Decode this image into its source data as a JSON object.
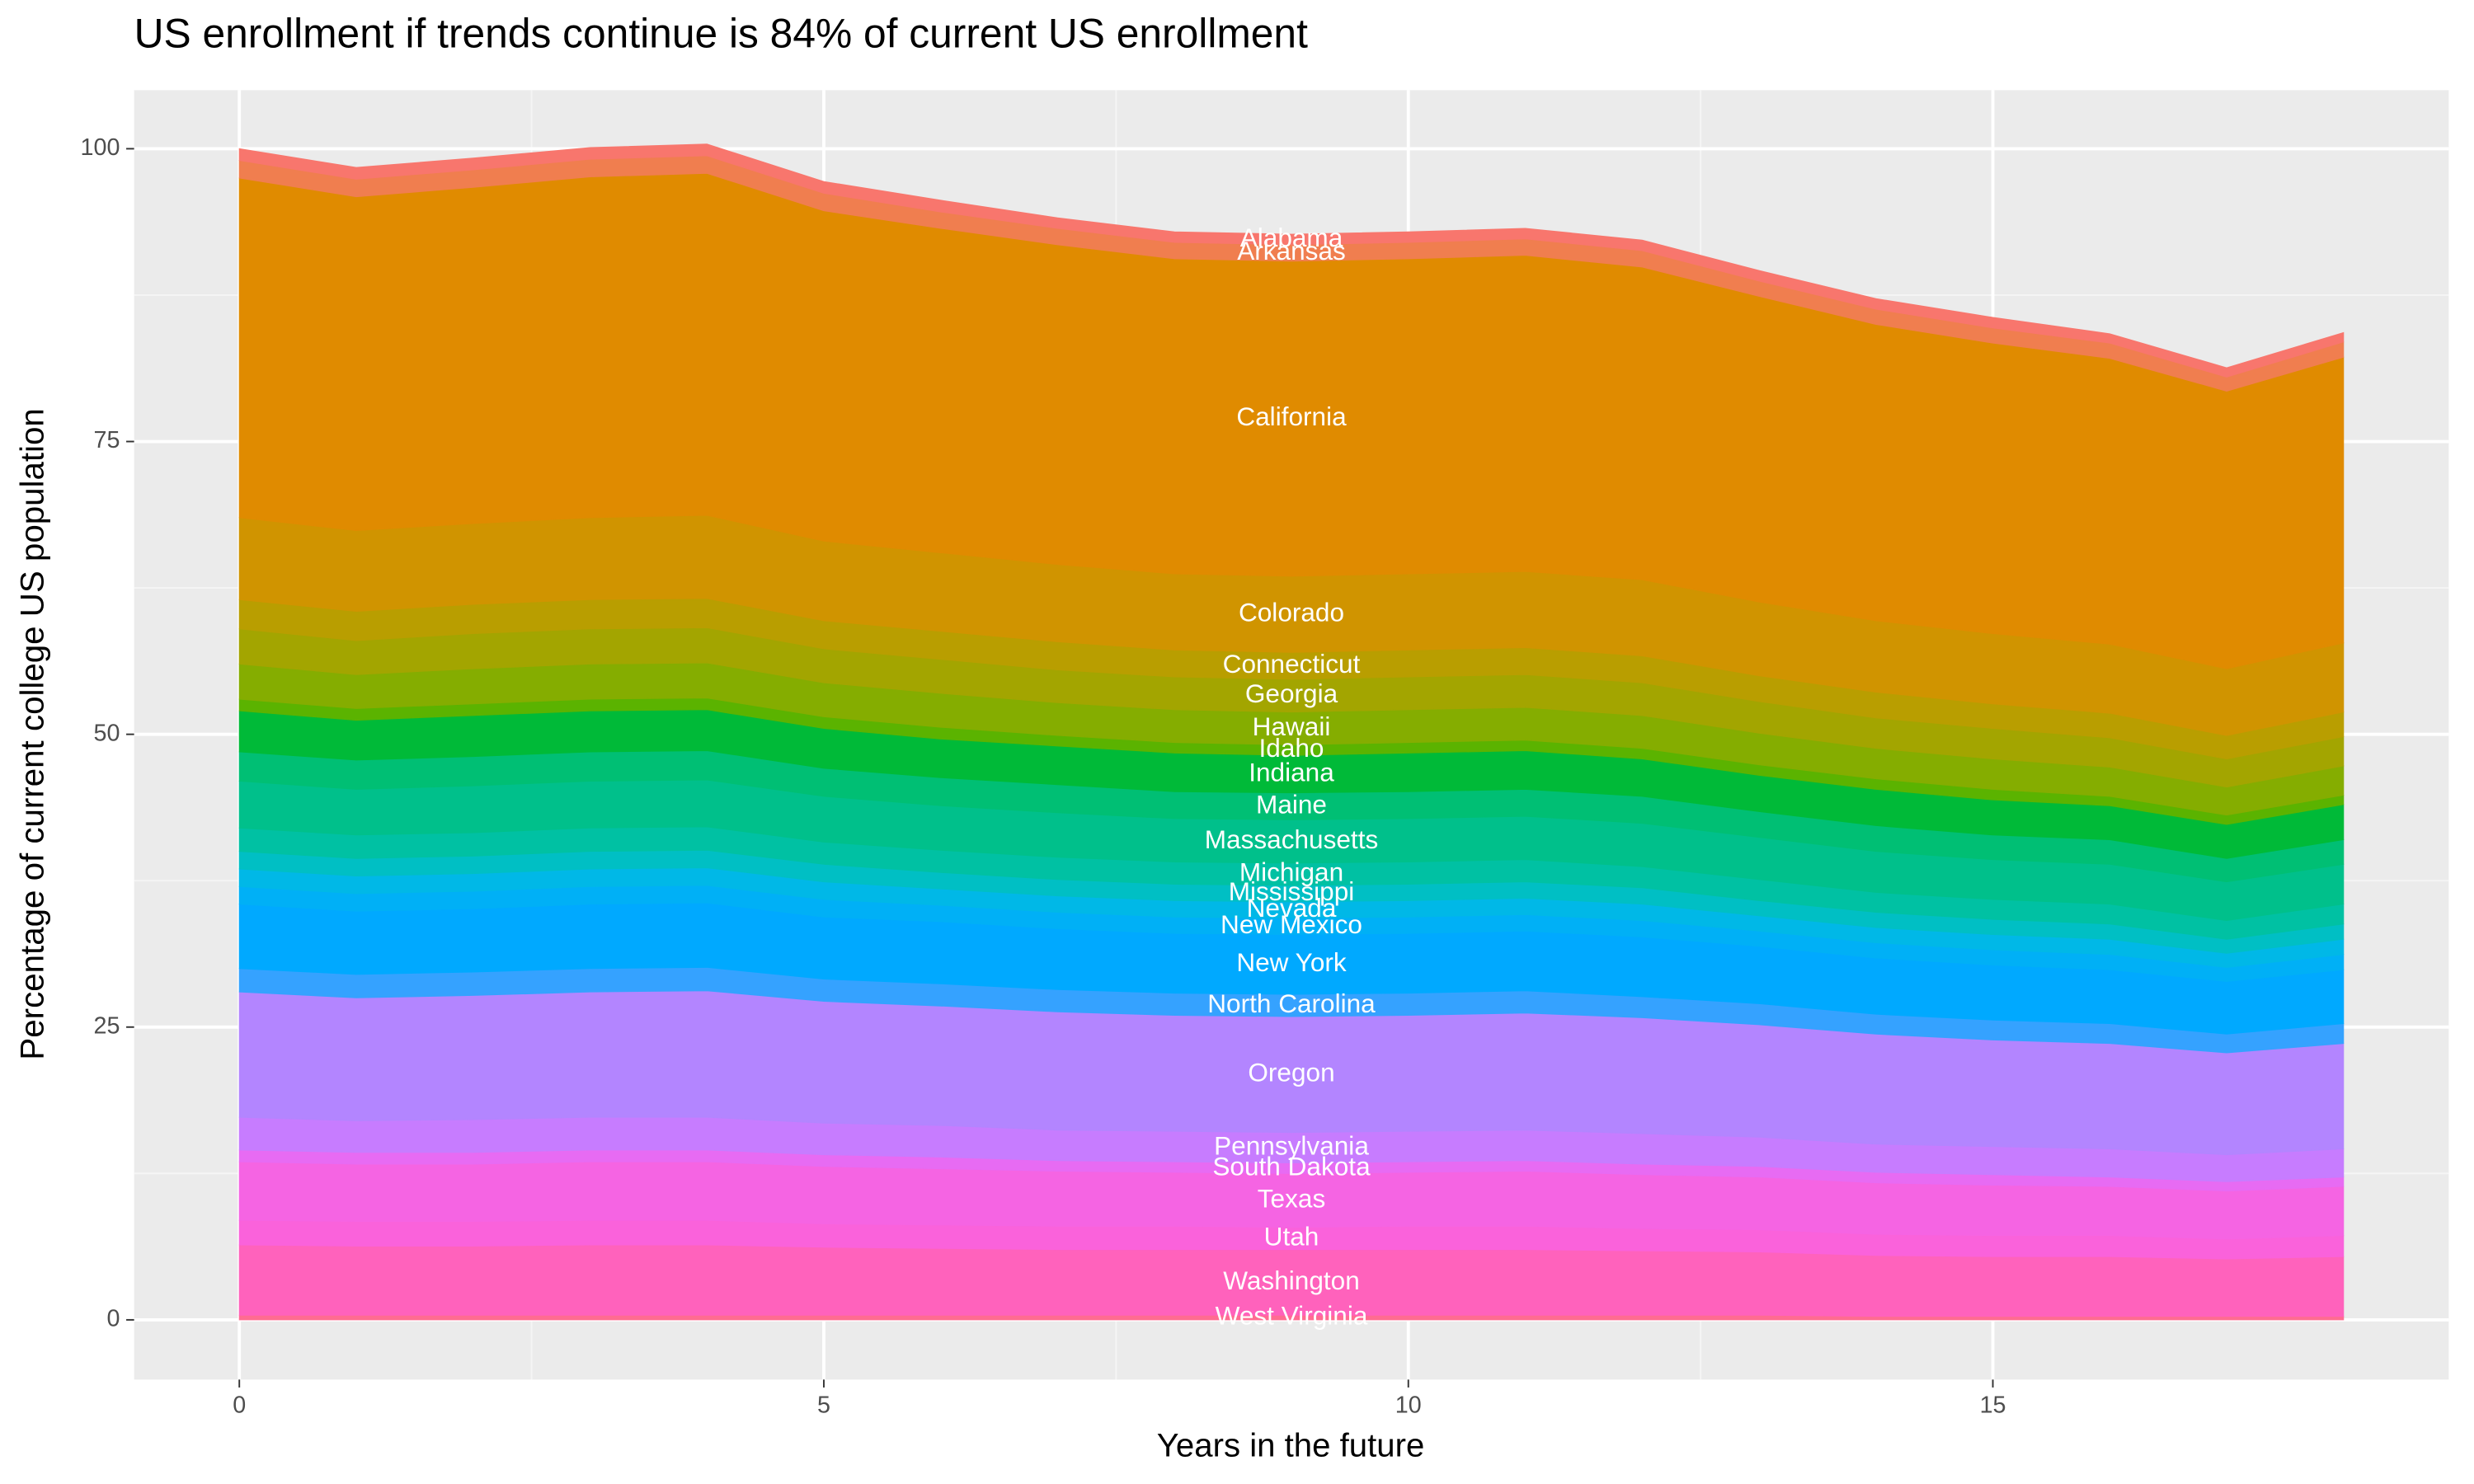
{
  "chart_data": {
    "type": "area",
    "title": "US enrollment if trends continue is 84% of current US enrollment",
    "x_label": "Years in the future",
    "y_label": "Percentage of current college US population",
    "x": [
      0,
      1,
      2,
      3,
      4,
      5,
      6,
      7,
      8,
      9,
      10,
      11,
      12,
      13,
      14,
      15,
      16,
      17,
      18
    ],
    "xlim": [
      -0.9,
      18.9
    ],
    "ylim": [
      -5.1,
      105
    ],
    "xticks": [
      0,
      5,
      10,
      15
    ],
    "yticks": [
      0,
      25,
      50,
      75,
      100
    ],
    "grid": true,
    "stacked": true,
    "series": [
      {
        "name": "West Virginia",
        "color": "#FF6C91",
        "values": [
          0.4,
          0.4,
          0.4,
          0.4,
          0.4,
          0.4,
          0.4,
          0.4,
          0.4,
          0.4,
          0.4,
          0.4,
          0.4,
          0.4,
          0.3,
          0.3,
          0.3,
          0.3,
          0.3
        ]
      },
      {
        "name": "Washington",
        "color": "#FF62BC",
        "values": [
          6.0,
          5.9,
          5.9,
          6.0,
          6.0,
          5.8,
          5.7,
          5.6,
          5.6,
          5.6,
          5.6,
          5.6,
          5.5,
          5.4,
          5.2,
          5.1,
          5.1,
          4.9,
          5.1
        ]
      },
      {
        "name": "Utah",
        "color": "#FA62DB",
        "values": [
          2.1,
          2.1,
          2.1,
          2.1,
          2.1,
          2.0,
          2.0,
          2.0,
          2.0,
          1.9,
          2.0,
          2.0,
          1.9,
          1.9,
          1.8,
          1.8,
          1.8,
          1.7,
          1.8
        ]
      },
      {
        "name": "Texas",
        "color": "#F564E3",
        "values": [
          5.0,
          4.9,
          4.9,
          5.0,
          5.0,
          4.9,
          4.8,
          4.7,
          4.6,
          4.6,
          4.6,
          4.7,
          4.6,
          4.5,
          4.4,
          4.3,
          4.2,
          4.1,
          4.2
        ]
      },
      {
        "name": "South Dakota",
        "color": "#E76BF3",
        "values": [
          1.0,
          1.0,
          1.0,
          1.0,
          1.0,
          1.0,
          1.0,
          0.9,
          0.9,
          0.9,
          0.9,
          0.9,
          0.9,
          0.9,
          0.9,
          0.9,
          0.8,
          0.8,
          0.8
        ]
      },
      {
        "name": "Pennsylvania",
        "color": "#C77CFF",
        "values": [
          2.8,
          2.7,
          2.8,
          2.8,
          2.8,
          2.7,
          2.7,
          2.6,
          2.6,
          2.6,
          2.6,
          2.6,
          2.6,
          2.5,
          2.4,
          2.4,
          2.4,
          2.3,
          2.4
        ]
      },
      {
        "name": "Oregon",
        "color": "#B385FF",
        "values": [
          10.7,
          10.5,
          10.6,
          10.7,
          10.8,
          10.4,
          10.2,
          10.1,
          9.9,
          9.9,
          9.9,
          10.0,
          9.9,
          9.6,
          9.4,
          9.1,
          9.0,
          8.7,
          9.0
        ]
      },
      {
        "name": "North Carolina",
        "color": "#35A2FF",
        "values": [
          2.0,
          2.0,
          2.0,
          2.0,
          2.0,
          1.9,
          1.9,
          1.9,
          1.9,
          1.9,
          1.9,
          1.9,
          1.8,
          1.8,
          1.7,
          1.7,
          1.7,
          1.6,
          1.7
        ]
      },
      {
        "name": "New York",
        "color": "#00A9FF",
        "values": [
          5.5,
          5.4,
          5.4,
          5.5,
          5.5,
          5.3,
          5.3,
          5.2,
          5.1,
          5.1,
          5.1,
          5.1,
          5.1,
          4.9,
          4.8,
          4.7,
          4.6,
          4.5,
          4.6
        ]
      },
      {
        "name": "New Mexico",
        "color": "#00B0F6",
        "values": [
          1.5,
          1.5,
          1.5,
          1.5,
          1.5,
          1.5,
          1.4,
          1.4,
          1.4,
          1.4,
          1.4,
          1.4,
          1.4,
          1.3,
          1.3,
          1.3,
          1.3,
          1.2,
          1.3
        ]
      },
      {
        "name": "Nevada",
        "color": "#00B8E7",
        "values": [
          1.5,
          1.5,
          1.5,
          1.5,
          1.5,
          1.5,
          1.4,
          1.4,
          1.4,
          1.4,
          1.4,
          1.4,
          1.4,
          1.3,
          1.3,
          1.3,
          1.3,
          1.2,
          1.3
        ]
      },
      {
        "name": "Mississippi",
        "color": "#00BFC4",
        "values": [
          1.5,
          1.5,
          1.5,
          1.5,
          1.5,
          1.5,
          1.4,
          1.4,
          1.4,
          1.4,
          1.4,
          1.4,
          1.4,
          1.3,
          1.3,
          1.3,
          1.3,
          1.2,
          1.3
        ]
      },
      {
        "name": "Michigan",
        "color": "#00C1A3",
        "values": [
          2.0,
          2.0,
          2.0,
          2.0,
          2.0,
          1.9,
          1.9,
          1.9,
          1.9,
          1.9,
          1.9,
          1.9,
          1.8,
          1.8,
          1.7,
          1.7,
          1.7,
          1.6,
          1.7
        ]
      },
      {
        "name": "Massachusetts",
        "color": "#00C08B",
        "values": [
          4.0,
          3.9,
          4.0,
          4.0,
          4.0,
          3.9,
          3.8,
          3.8,
          3.7,
          3.7,
          3.7,
          3.7,
          3.7,
          3.6,
          3.5,
          3.4,
          3.4,
          3.3,
          3.4
        ]
      },
      {
        "name": "Maine",
        "color": "#00BF74",
        "values": [
          2.5,
          2.5,
          2.5,
          2.5,
          2.5,
          2.4,
          2.4,
          2.4,
          2.3,
          2.3,
          2.3,
          2.3,
          2.3,
          2.2,
          2.2,
          2.1,
          2.1,
          2.0,
          2.1
        ]
      },
      {
        "name": "Indiana",
        "color": "#00BA38",
        "values": [
          3.5,
          3.4,
          3.5,
          3.5,
          3.5,
          3.4,
          3.3,
          3.3,
          3.3,
          3.2,
          3.3,
          3.3,
          3.2,
          3.1,
          3.1,
          3.0,
          2.9,
          2.9,
          3.0
        ]
      },
      {
        "name": "Idaho",
        "color": "#5BB300",
        "values": [
          1.0,
          1.0,
          1.0,
          1.0,
          1.0,
          1.0,
          1.0,
          0.9,
          0.9,
          0.9,
          0.9,
          0.9,
          0.9,
          0.9,
          0.9,
          0.9,
          0.8,
          0.8,
          0.8
        ]
      },
      {
        "name": "Hawaii",
        "color": "#85AD00",
        "values": [
          3.0,
          2.9,
          3.0,
          3.0,
          3.0,
          2.9,
          2.9,
          2.8,
          2.8,
          2.8,
          2.8,
          2.8,
          2.8,
          2.7,
          2.6,
          2.6,
          2.5,
          2.4,
          2.5
        ]
      },
      {
        "name": "Georgia",
        "color": "#A3A500",
        "values": [
          3.0,
          2.9,
          3.0,
          3.0,
          3.0,
          2.9,
          2.9,
          2.8,
          2.8,
          2.8,
          2.8,
          2.8,
          2.8,
          2.7,
          2.6,
          2.6,
          2.5,
          2.4,
          2.5
        ]
      },
      {
        "name": "Connecticut",
        "color": "#B99E00",
        "values": [
          2.5,
          2.5,
          2.5,
          2.5,
          2.5,
          2.4,
          2.4,
          2.4,
          2.3,
          2.3,
          2.3,
          2.3,
          2.3,
          2.2,
          2.2,
          2.1,
          2.1,
          2.0,
          2.1
        ]
      },
      {
        "name": "Colorado",
        "color": "#D09400",
        "values": [
          7.0,
          6.9,
          6.9,
          7.0,
          7.1,
          6.8,
          6.7,
          6.6,
          6.5,
          6.5,
          6.5,
          6.5,
          6.5,
          6.3,
          6.1,
          6.0,
          5.9,
          5.7,
          5.9
        ]
      },
      {
        "name": "California",
        "color": "#E08B00",
        "values": [
          29.0,
          28.5,
          28.7,
          29.1,
          29.2,
          28.2,
          27.7,
          27.3,
          26.9,
          26.9,
          26.9,
          27.0,
          26.7,
          26.1,
          25.3,
          24.8,
          24.4,
          23.7,
          24.4
        ]
      },
      {
        "name": "Arkansas",
        "color": "#F07E4F",
        "values": [
          1.5,
          1.5,
          1.5,
          1.5,
          1.5,
          1.5,
          1.4,
          1.4,
          1.4,
          1.4,
          1.4,
          1.4,
          1.4,
          1.3,
          1.3,
          1.3,
          1.3,
          1.2,
          1.3
        ]
      },
      {
        "name": "Alabama",
        "color": "#F8766D",
        "values": [
          1.0,
          1.0,
          1.0,
          1.0,
          1.0,
          1.0,
          1.0,
          0.9,
          0.9,
          0.9,
          0.9,
          0.9,
          0.9,
          0.9,
          0.9,
          0.9,
          0.8,
          0.8,
          0.8
        ]
      }
    ]
  }
}
